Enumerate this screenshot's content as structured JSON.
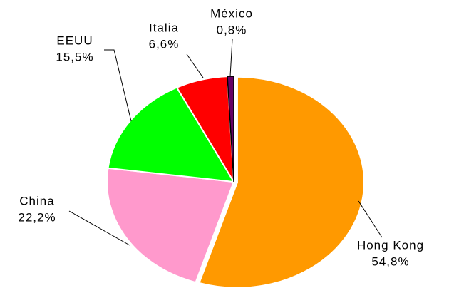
{
  "chart_data": {
    "type": "pie",
    "categories": [
      "Hong Kong",
      "China",
      "EEUU",
      "Italia",
      "México"
    ],
    "values": [
      54.8,
      22.2,
      15.5,
      6.6,
      0.8
    ],
    "value_labels": [
      "54,8%",
      "22,2%",
      "15,5%",
      "6,6%",
      "0,8%"
    ],
    "colors": [
      "#ff9900",
      "#ff99cc",
      "#00ff00",
      "#ff0000",
      "#660066"
    ]
  }
}
